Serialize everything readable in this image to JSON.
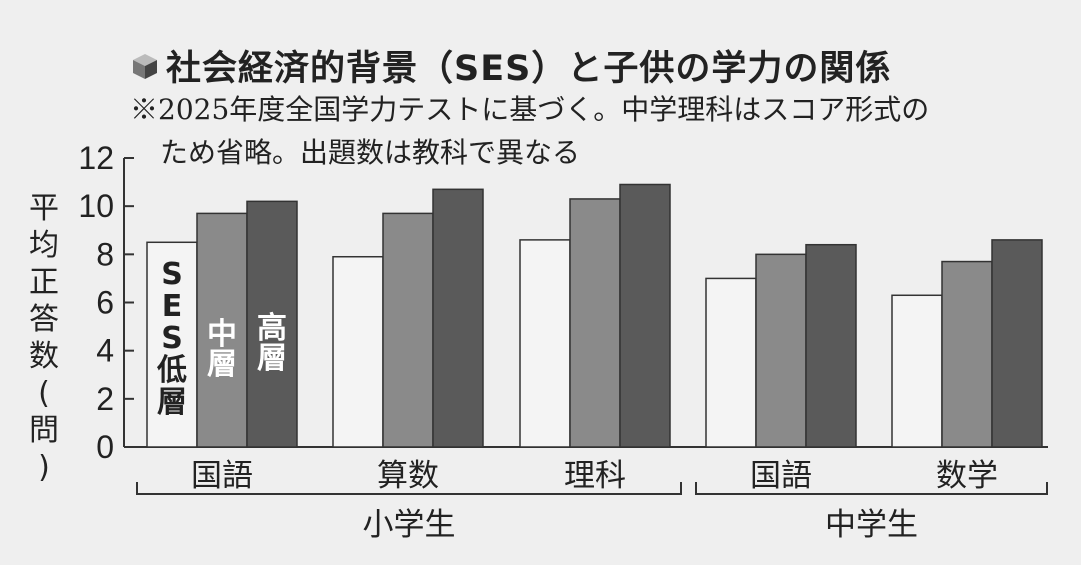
{
  "title": "社会経済的背景（SES）と子供の学力の関係",
  "notes": [
    "※2025年度全国学力テストに基づく。中学理科はスコア形式の",
    "ため省略。出題数は教科で異なる"
  ],
  "chart_data": {
    "type": "bar",
    "ylabel": "平均正答数(問)",
    "ylim": [
      0,
      12
    ],
    "yticks": [
      0,
      2,
      4,
      6,
      8,
      10,
      12
    ],
    "categories": [
      "国語",
      "算数",
      "理科",
      "国語",
      "数学"
    ],
    "groups": [
      {
        "label": "小学生",
        "categories": [
          "国語",
          "算数",
          "理科"
        ]
      },
      {
        "label": "中学生",
        "categories": [
          "国語",
          "数学"
        ]
      }
    ],
    "series": [
      {
        "name": "SES低層",
        "color": "#f4f4f4",
        "values": [
          8.5,
          7.9,
          8.6,
          7.0,
          6.3
        ]
      },
      {
        "name": "中層",
        "color": "#8a8a8a",
        "values": [
          9.7,
          9.7,
          10.3,
          8.0,
          7.7
        ]
      },
      {
        "name": "高層",
        "color": "#5a5a5a",
        "values": [
          10.2,
          10.7,
          10.9,
          8.4,
          8.6
        ]
      }
    ],
    "grid": false
  }
}
